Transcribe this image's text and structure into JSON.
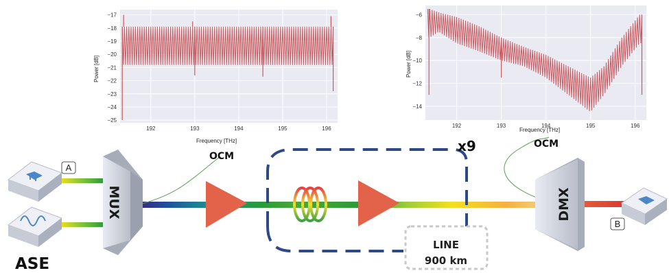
{
  "chart_data": [
    {
      "type": "line",
      "xlabel": "Frequency [THz]",
      "ylabel": "Power [dB]",
      "xlim": [
        191.3,
        196.25
      ],
      "ylim": [
        -25.2,
        -16.6
      ],
      "xticks": [
        192,
        193,
        194,
        195,
        196
      ],
      "yticks": [
        -17,
        -18,
        -19,
        -20,
        -21,
        -22,
        -23,
        -24,
        -25
      ],
      "grid": true,
      "x_range": [
        191.35,
        196.15
      ],
      "envelope_top": [
        -17.9,
        -17.9
      ],
      "envelope_bottom": [
        -20.8,
        -20.8
      ],
      "channel_count": 96,
      "series_color": "#c95a5f",
      "spikes": [
        {
          "x": 191.38,
          "y": -17.0
        },
        {
          "x": 191.35,
          "y": -25.0
        },
        {
          "x": 193.0,
          "y": -21.6
        },
        {
          "x": 192.95,
          "y": -17.5
        },
        {
          "x": 194.55,
          "y": -21.7
        },
        {
          "x": 196.1,
          "y": -17.1
        },
        {
          "x": 196.15,
          "y": -22.8
        }
      ]
    },
    {
      "type": "line",
      "xlabel": "Frequency [THz]",
      "ylabel": "Power [dB]",
      "xlim": [
        191.3,
        196.25
      ],
      "ylim": [
        -15.2,
        -5.2
      ],
      "xticks": [
        192,
        193,
        194,
        195,
        196
      ],
      "yticks": [
        -6,
        -8,
        -10,
        -12,
        -14
      ],
      "grid": true,
      "x_range": [
        191.35,
        196.15
      ],
      "envelope_top": [
        [
          191.4,
          -5.5
        ],
        [
          191.6,
          -5.8
        ],
        [
          192.0,
          -6.2
        ],
        [
          192.5,
          -7.0
        ],
        [
          193.0,
          -8.0
        ],
        [
          193.5,
          -8.8
        ],
        [
          194.0,
          -9.5
        ],
        [
          194.5,
          -10.5
        ],
        [
          195.0,
          -11.5
        ],
        [
          195.3,
          -10.5
        ],
        [
          195.7,
          -8.0
        ],
        [
          196.1,
          -6.0
        ]
      ],
      "envelope_bottom": [
        [
          191.4,
          -8.0
        ],
        [
          191.6,
          -7.5
        ],
        [
          192.0,
          -8.5
        ],
        [
          192.5,
          -9.2
        ],
        [
          193.0,
          -10.0
        ],
        [
          193.5,
          -10.5
        ],
        [
          194.0,
          -11.5
        ],
        [
          194.5,
          -13.0
        ],
        [
          195.0,
          -14.5
        ],
        [
          195.3,
          -13.0
        ],
        [
          195.7,
          -10.5
        ],
        [
          196.1,
          -8.5
        ]
      ],
      "channel_count": 96,
      "series_color": "#c95a5f",
      "spikes": [
        {
          "x": 191.38,
          "y": -13.0
        },
        {
          "x": 193.0,
          "y": -11.5
        },
        {
          "x": 196.15,
          "y": -13.0
        }
      ]
    }
  ],
  "diagram": {
    "label_a": "A",
    "label_b": "B",
    "ase": "ASE",
    "mux": "MUX",
    "dmx": "DMX",
    "ocm_left": "OCM",
    "ocm_right": "OCM",
    "repeat": "x9",
    "line_label": "LINE",
    "line_length": "900 km",
    "colors": {
      "amplifier": "#e8694f",
      "loop_dash": "#2d4a87",
      "device": "#c9ced8",
      "fiber_green": "#3aa04a"
    }
  }
}
